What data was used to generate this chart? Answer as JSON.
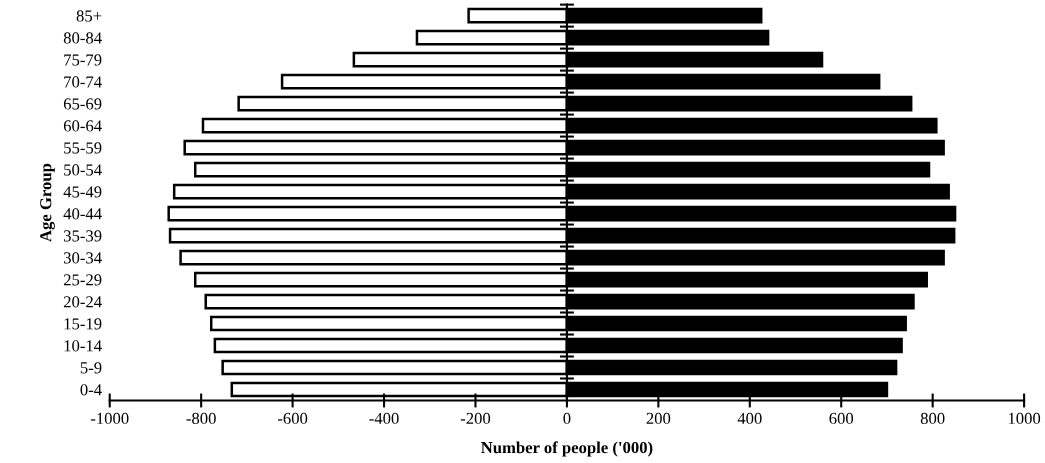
{
  "chart_data": {
    "type": "bar",
    "orientation": "horizontal",
    "xlabel": "Number of people ('000)",
    "ylabel": "Age Group",
    "categories": [
      "85+",
      "80-84",
      "75-79",
      "70-74",
      "65-69",
      "60-64",
      "55-59",
      "50-54",
      "45-49",
      "40-44",
      "35-39",
      "30-34",
      "25-29",
      "20-24",
      "15-19",
      "10-14",
      "5-9",
      "0-4"
    ],
    "series": [
      {
        "color": "#ffffff",
        "values": [
          -215,
          -328,
          -466,
          -623,
          -718,
          -796,
          -836,
          -813,
          -859,
          -871,
          -868,
          -845,
          -813,
          -790,
          -778,
          -770,
          -753,
          -733
        ]
      },
      {
        "color": "#000000",
        "values": [
          425,
          440,
          558,
          683,
          753,
          808,
          824,
          792,
          835,
          849,
          847,
          824,
          787,
          758,
          741,
          732,
          720,
          700
        ]
      }
    ],
    "xlim": [
      -1000,
      1000
    ],
    "xticks": [
      -1000,
      -800,
      -600,
      -400,
      -200,
      0,
      200,
      400,
      600,
      800,
      1000
    ],
    "stacked": true
  }
}
